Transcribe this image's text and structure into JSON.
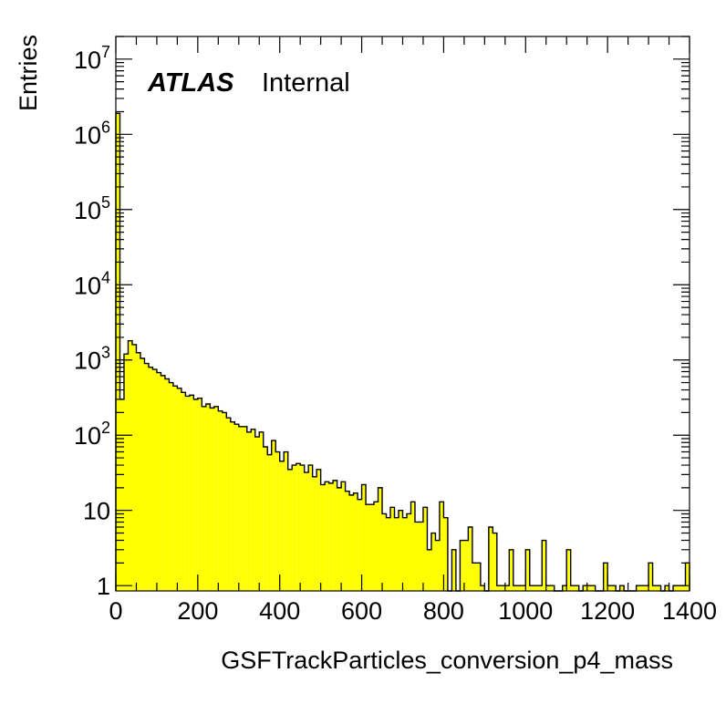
{
  "chart_data": {
    "type": "histogram",
    "xlabel": "GSFTrackParticles_conversion_p4_mass",
    "ylabel": "Entries",
    "xlim": [
      0,
      1400
    ],
    "ylim": [
      0.85,
      20000000
    ],
    "yscale": "log",
    "bin_width": 10,
    "fill_color": "#ffff00",
    "line_color": "#000000",
    "x_ticks": [
      "0",
      "200",
      "400",
      "600",
      "800",
      "1000",
      "1200",
      "1400"
    ],
    "y_ticks": [
      {
        "value": 1,
        "base": "1",
        "exp": ""
      },
      {
        "value": 10,
        "base": "10",
        "exp": ""
      },
      {
        "value": 100,
        "base": "10",
        "exp": "2"
      },
      {
        "value": 1000,
        "base": "10",
        "exp": "3"
      },
      {
        "value": 10000,
        "base": "10",
        "exp": "4"
      },
      {
        "value": 100000,
        "base": "10",
        "exp": "5"
      },
      {
        "value": 1000000,
        "base": "10",
        "exp": "6"
      },
      {
        "value": 10000000,
        "base": "10",
        "exp": "7"
      }
    ],
    "label_atlas": "ATLAS",
    "label_status": "Internal",
    "values": [
      1900000,
      300,
      1200,
      1800,
      1600,
      1250,
      1050,
      900,
      800,
      750,
      680,
      620,
      560,
      500,
      450,
      420,
      370,
      330,
      340,
      300,
      310,
      240,
      260,
      230,
      240,
      210,
      200,
      170,
      150,
      140,
      130,
      130,
      110,
      120,
      95,
      110,
      70,
      55,
      85,
      60,
      45,
      60,
      35,
      40,
      42,
      40,
      32,
      40,
      28,
      35,
      22,
      24,
      23,
      25,
      20,
      24,
      18,
      16,
      17,
      14,
      22,
      12,
      12,
      13,
      20,
      9,
      8,
      11,
      8,
      10,
      8,
      9,
      13,
      7,
      7,
      11,
      3,
      5,
      4,
      13,
      8,
      0,
      3,
      0,
      4,
      4,
      6,
      2,
      2,
      1,
      0,
      6,
      5,
      1,
      1,
      1,
      3,
      1,
      1,
      1,
      3,
      1,
      1,
      1,
      4,
      1,
      1,
      0,
      0,
      1,
      3,
      1,
      1,
      0,
      1,
      1,
      1,
      0,
      0,
      2,
      1,
      1,
      0,
      1,
      0,
      0,
      0,
      1,
      1,
      1,
      2,
      1,
      1,
      0,
      1,
      0,
      1,
      1,
      1,
      2
    ]
  }
}
